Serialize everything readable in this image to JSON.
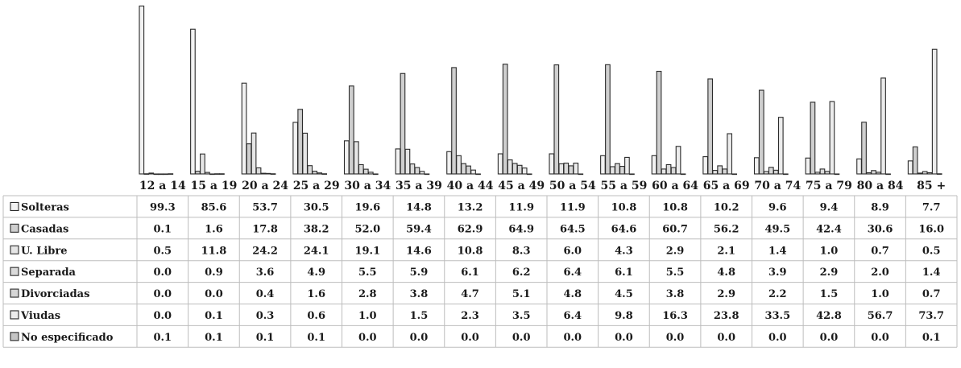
{
  "chart_data": {
    "type": "bar",
    "title": "",
    "xlabel": "",
    "ylabel": "",
    "ylim": [
      0,
      100
    ],
    "categories": [
      "12 a 14",
      "15 a 19",
      "20 a 24",
      "25 a 29",
      "30 a 34",
      "35 a 39",
      "40 a 44",
      "45 a 49",
      "50 a 54",
      "55 a 59",
      "60 a 64",
      "65 a 69",
      "70 a 74",
      "75 a 79",
      "80 a 84",
      "85 +"
    ],
    "series": [
      {
        "name": "Solteras",
        "values": [
          99.3,
          85.6,
          53.7,
          30.5,
          19.6,
          14.8,
          13.2,
          11.9,
          11.9,
          10.8,
          10.8,
          10.2,
          9.6,
          9.4,
          8.9,
          7.7
        ]
      },
      {
        "name": "Casadas",
        "values": [
          0.1,
          1.6,
          17.8,
          38.2,
          52.0,
          59.4,
          62.9,
          64.9,
          64.5,
          64.6,
          60.7,
          56.2,
          49.5,
          42.4,
          30.6,
          16.0
        ]
      },
      {
        "name": "U. Libre",
        "values": [
          0.5,
          11.8,
          24.2,
          24.1,
          19.1,
          14.6,
          10.8,
          8.3,
          6.0,
          4.3,
          2.9,
          2.1,
          1.4,
          1.0,
          0.7,
          0.5
        ]
      },
      {
        "name": "Separada",
        "values": [
          0.0,
          0.9,
          3.6,
          4.9,
          5.5,
          5.9,
          6.1,
          6.2,
          6.4,
          6.1,
          5.5,
          4.8,
          3.9,
          2.9,
          2.0,
          1.4
        ]
      },
      {
        "name": "Divorciadas",
        "values": [
          0.0,
          0.0,
          0.4,
          1.6,
          2.8,
          3.8,
          4.7,
          5.1,
          4.8,
          4.5,
          3.8,
          2.9,
          2.2,
          1.5,
          1.0,
          0.7
        ]
      },
      {
        "name": "Viudas",
        "values": [
          0.0,
          0.1,
          0.3,
          0.6,
          1.0,
          1.5,
          2.3,
          3.5,
          6.4,
          9.8,
          16.3,
          23.8,
          33.5,
          42.8,
          56.7,
          73.7
        ]
      },
      {
        "name": "No especificado",
        "values": [
          0.1,
          0.1,
          0.1,
          0.1,
          0.0,
          0.0,
          0.0,
          0.0,
          0.0,
          0.0,
          0.0,
          0.0,
          0.0,
          0.0,
          0.0,
          0.1
        ]
      }
    ],
    "legend": "data-table-left",
    "grid": false
  },
  "table": {
    "value_format": "one-decimal"
  },
  "colors": {
    "Solteras": "#f2f2f2",
    "Casadas": "#cfcfcf",
    "U. Libre": "#e6e6e6",
    "Separada": "#dadada",
    "Divorciadas": "#d6d6d6",
    "Viudas": "#ececec",
    "No especificado": "#c4c4c4",
    "outline": "#2b2b2b",
    "grid": "#bdbdbd"
  }
}
